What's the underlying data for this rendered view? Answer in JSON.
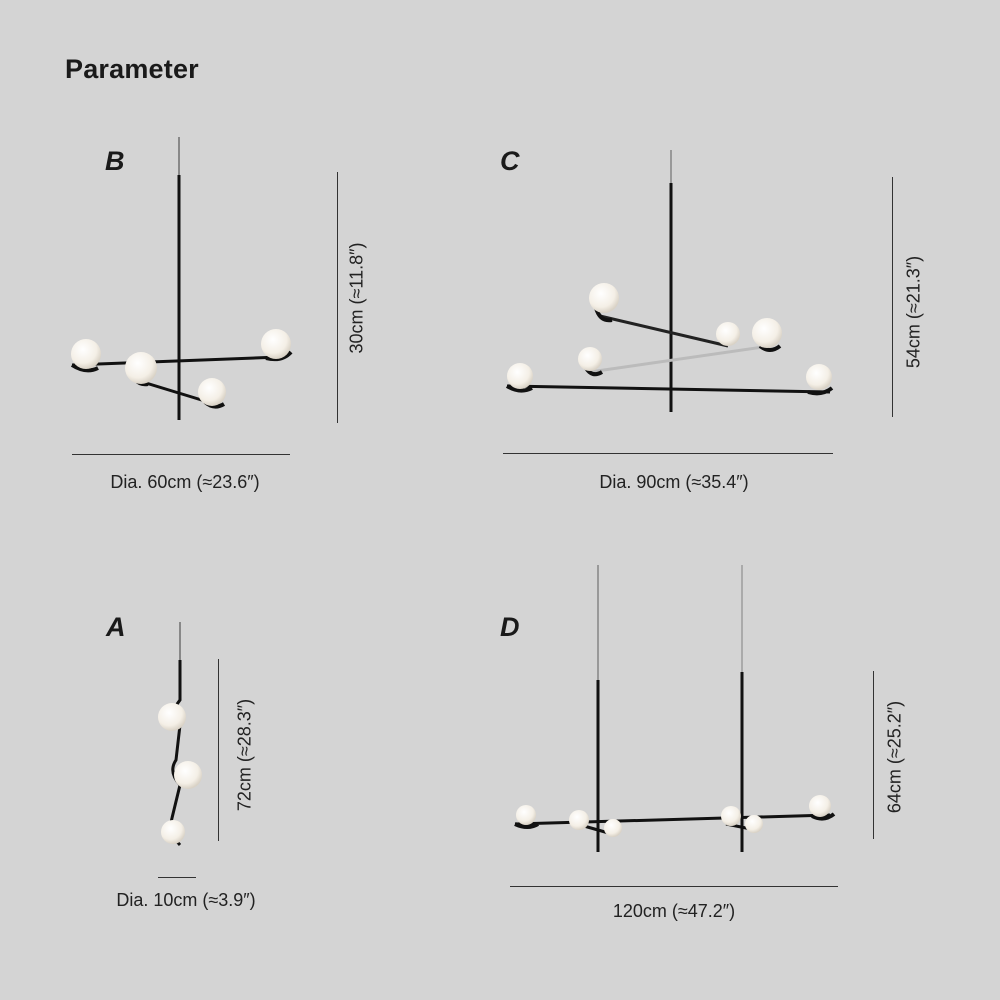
{
  "page": {
    "title": "Parameter"
  },
  "variants": {
    "b": {
      "label": "B",
      "height_text": "30cm (≈11.8″)",
      "width_text": "Dia. 60cm (≈23.6″)"
    },
    "c": {
      "label": "C",
      "height_text": "54cm (≈21.3″)",
      "width_text": "Dia. 90cm (≈35.4″)"
    },
    "a": {
      "label": "A",
      "height_text": "72cm (≈28.3″)",
      "width_text": "Dia. 10cm (≈3.9″)"
    },
    "d": {
      "label": "D",
      "height_text": "64cm (≈25.2″)",
      "width_text": "120cm (≈47.2″)"
    }
  }
}
